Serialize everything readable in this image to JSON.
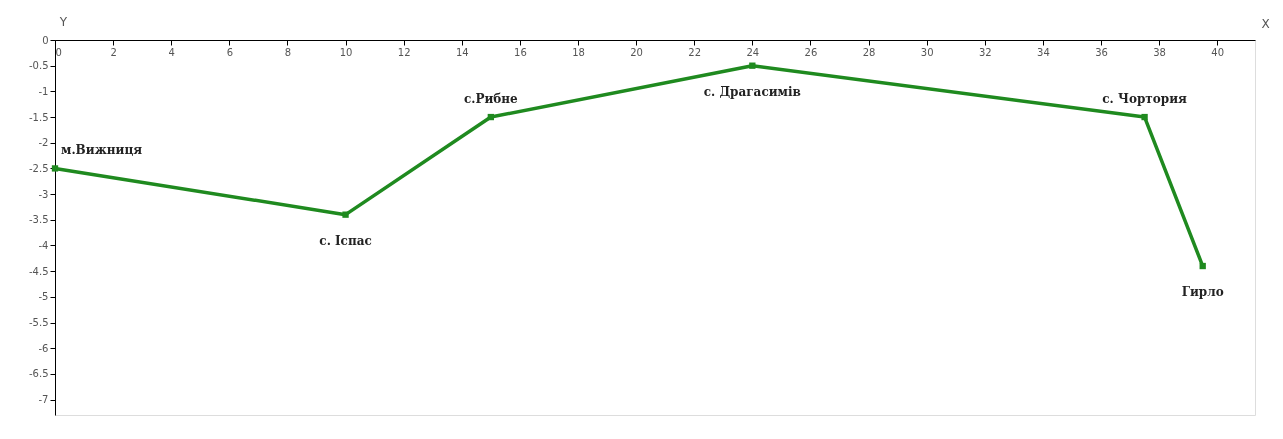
{
  "chart_data": {
    "type": "line",
    "xlabel": "X",
    "ylabel": "Y",
    "x": [
      0,
      10,
      15,
      24,
      37.5,
      39.5
    ],
    "series": [
      {
        "color": "#1f8a1f",
        "values": [
          -2.5,
          -3.4,
          -1.5,
          -0.5,
          -1.5,
          -4.4
        ]
      }
    ],
    "xlim": [
      0,
      41.3
    ],
    "ylim": [
      -7.3,
      0
    ],
    "xticks": [
      0,
      2,
      4,
      6,
      8,
      10,
      12,
      14,
      16,
      18,
      20,
      22,
      24,
      26,
      28,
      30,
      32,
      34,
      36,
      38,
      40
    ],
    "yticks": [
      0,
      -0.5,
      -1,
      -1.5,
      -2,
      -2.5,
      -3,
      -3.5,
      -4,
      -4.5,
      -5,
      -5.5,
      -6,
      -6.5,
      -7
    ],
    "marker": "square",
    "grid": false,
    "annotations": [
      {
        "text": "м.Вижниця",
        "x": 0,
        "y": -2.5
      },
      {
        "text": "с. Іспас",
        "x": 10,
        "y": -3.4
      },
      {
        "text": "с.Рибне",
        "x": 15,
        "y": -1.5
      },
      {
        "text": "с. Драгасимів",
        "x": 24,
        "y": -0.5
      },
      {
        "text": "с. Чортория",
        "x": 37.5,
        "y": -1.5
      },
      {
        "text": "Гирло",
        "x": 39.5,
        "y": -4.4
      }
    ]
  }
}
